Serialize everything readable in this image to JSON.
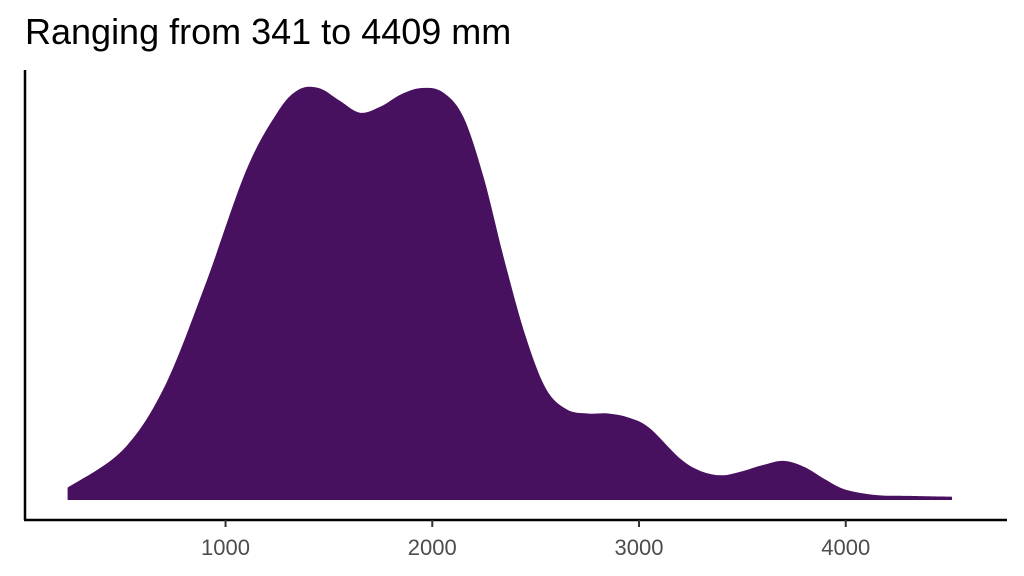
{
  "chart_data": {
    "type": "area",
    "title": "Ranging from 341 to 4409 mm",
    "xlabel": "",
    "ylabel": "",
    "xlim": [
      30,
      4780
    ],
    "ylim": [
      0,
      1.0
    ],
    "grid": false,
    "legend": "none",
    "fill_color": "#481160",
    "x_ticks": [
      1000,
      2000,
      3000,
      4000
    ],
    "x_tick_labels": [
      "1000",
      "2000",
      "3000",
      "4000"
    ],
    "series": [
      {
        "x": [
          236,
          500,
          700,
          900,
          1100,
          1250,
          1350,
          1450,
          1550,
          1650,
          1750,
          1850,
          1950,
          2050,
          2150,
          2250,
          2350,
          2450,
          2550,
          2650,
          2750,
          2850,
          2950,
          3050,
          3200,
          3300,
          3400,
          3500,
          3600,
          3700,
          3800,
          3900,
          4000,
          4150,
          4300,
          4514
        ],
        "y": [
          0.03,
          0.12,
          0.27,
          0.52,
          0.8,
          0.94,
          0.995,
          1.0,
          0.97,
          0.94,
          0.955,
          0.985,
          1.0,
          0.99,
          0.93,
          0.78,
          0.58,
          0.4,
          0.27,
          0.22,
          0.21,
          0.21,
          0.2,
          0.175,
          0.1,
          0.07,
          0.06,
          0.07,
          0.085,
          0.095,
          0.08,
          0.05,
          0.025,
          0.012,
          0.01,
          0.008
        ]
      }
    ]
  }
}
